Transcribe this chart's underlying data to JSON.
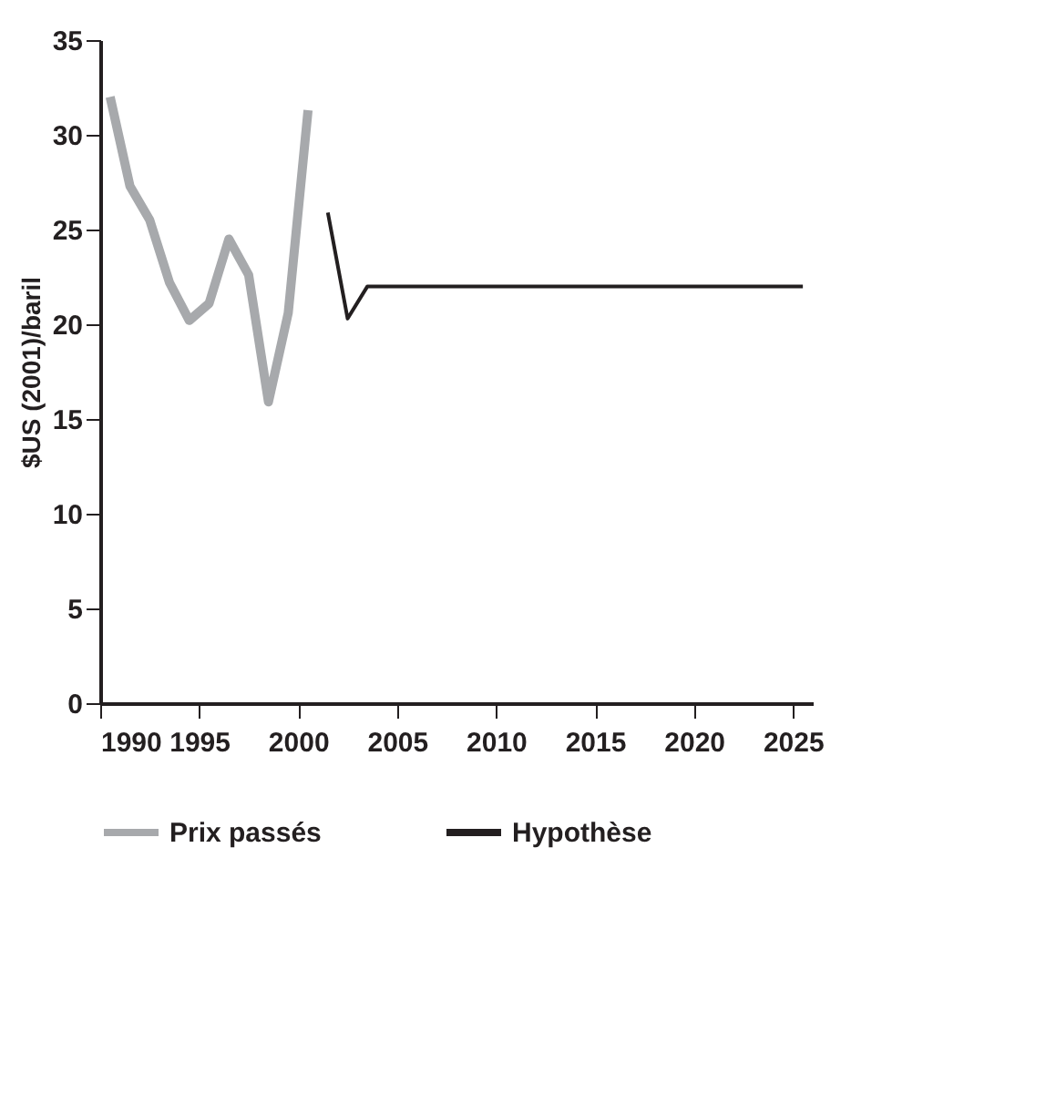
{
  "chart_data": {
    "type": "line",
    "ylabel": "$US (2001)/baril",
    "xlim": [
      1990,
      2026
    ],
    "xticks": [
      1990,
      1995,
      2000,
      2005,
      2010,
      2015,
      2020,
      2025
    ],
    "ylim": [
      0,
      35
    ],
    "yticks": [
      0,
      5,
      10,
      15,
      20,
      25,
      30,
      35
    ],
    "grid": false,
    "legend": "bottom",
    "line_style": "solid",
    "marker": "none",
    "series": [
      {
        "name": "Prix passés",
        "color": "#a7a9ac",
        "x": [
          1990.5,
          1991.5,
          1992.5,
          1993.5,
          1994.5,
          1995.5,
          1996.5,
          1997.5,
          1998.5,
          1999.5,
          2000.5
        ],
        "values": [
          32.0,
          27.3,
          25.5,
          22.2,
          20.2,
          21.1,
          24.5,
          22.6,
          15.9,
          20.6,
          31.3
        ]
      },
      {
        "name": "Hypothèse",
        "color": "#231f20",
        "x": [
          2001.5,
          2002.5,
          2003.5,
          2025.5
        ],
        "values": [
          25.9,
          20.3,
          22.0,
          22.0
        ]
      }
    ]
  }
}
